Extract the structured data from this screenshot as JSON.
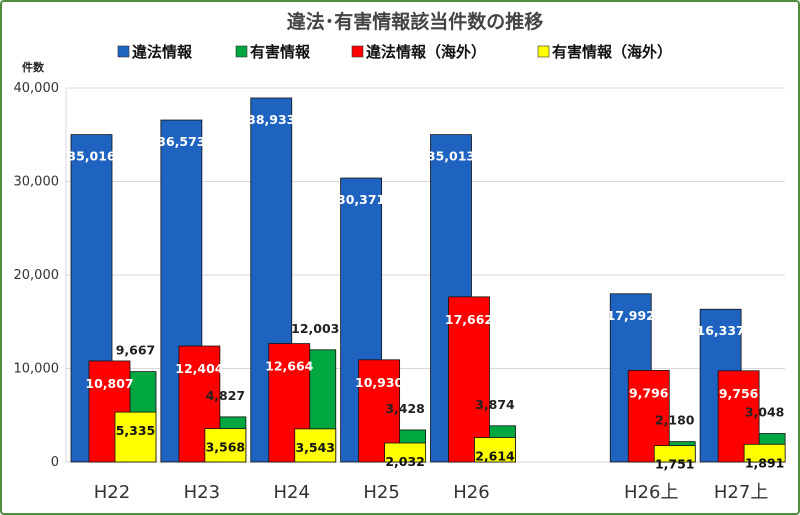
{
  "chart_data": {
    "type": "bar",
    "title": "違法･有害情報該当件数の推移",
    "ylabel": "件数",
    "xlabel": "",
    "ylim": [
      0,
      40000
    ],
    "yticks": [
      "0",
      "10,000",
      "20,000",
      "30,000",
      "40,000"
    ],
    "categories": [
      "H22",
      "H23",
      "H24",
      "H25",
      "H26",
      "",
      "H26上",
      "H27上"
    ],
    "grid": true,
    "legend_position": "top",
    "series": [
      {
        "name": "違法情報",
        "color": "#1f63c1",
        "values": [
          35016,
          36573,
          38933,
          30371,
          35013,
          null,
          17992,
          16337
        ],
        "labels": [
          "35,016",
          "36,573",
          "38,933",
          "30,371",
          "35,013",
          "",
          "17,992",
          "16,337"
        ]
      },
      {
        "name": "有害情報",
        "color": "#00a640",
        "values": [
          9667,
          4827,
          12003,
          3428,
          3874,
          null,
          2180,
          3048
        ],
        "labels": [
          "9,667",
          "4,827",
          "12,003",
          "3,428",
          "3,874",
          "",
          "2,180",
          "3,048"
        ]
      },
      {
        "name": "違法情報（海外）",
        "color": "#ff0000",
        "values": [
          10807,
          12404,
          12664,
          10930,
          17662,
          null,
          9796,
          9756
        ],
        "labels": [
          "10,807",
          "12,404",
          "12,664",
          "10,930",
          "17,662",
          "",
          "9,796",
          "9,756"
        ]
      },
      {
        "name": "有害情報（海外）",
        "color": "#ffff00",
        "values": [
          5335,
          3568,
          3543,
          2032,
          2614,
          null,
          1751,
          1891
        ],
        "labels": [
          "5,335",
          "3,568",
          "3,543",
          "2,032",
          "2,614",
          "",
          "1,751",
          "1,891"
        ]
      }
    ]
  }
}
